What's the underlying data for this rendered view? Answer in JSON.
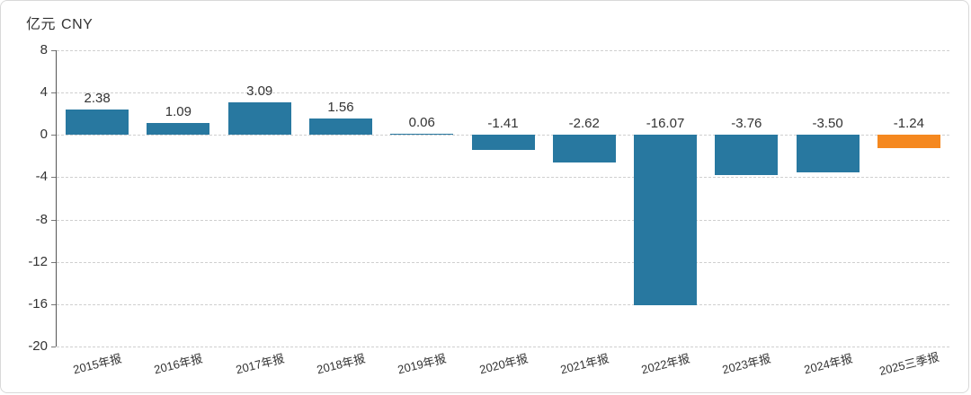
{
  "header": {
    "unit": "亿元",
    "currency": "CNY"
  },
  "chart_data": {
    "type": "bar",
    "title": "亿元 CNY",
    "xlabel": "",
    "ylabel": "亿元 CNY",
    "categories": [
      "2015年报",
      "2016年报",
      "2017年报",
      "2018年报",
      "2019年报",
      "2020年报",
      "2021年报",
      "2022年报",
      "2023年报",
      "2024年报",
      "2025三季报"
    ],
    "values": [
      2.38,
      1.09,
      3.09,
      1.56,
      0.06,
      -1.41,
      -2.62,
      -16.07,
      -3.76,
      -3.5,
      -1.24
    ],
    "value_labels": [
      "2.38",
      "1.09",
      "3.09",
      "1.56",
      "0.06",
      "-1.41",
      "-2.62",
      "-16.07",
      "-3.76",
      "-3.50",
      "-1.24"
    ],
    "ylim": [
      -20,
      8
    ],
    "yticks": [
      8,
      4,
      0,
      -4,
      -8,
      -12,
      -16,
      -20
    ],
    "highlight_index": 10,
    "grid": "dashed-horizontal",
    "legend": "none",
    "colors": {
      "bar": "#2878a0",
      "highlight": "#f5881f",
      "grid": "#cfcfcf",
      "axis": "#555555",
      "text": "#333333"
    }
  }
}
